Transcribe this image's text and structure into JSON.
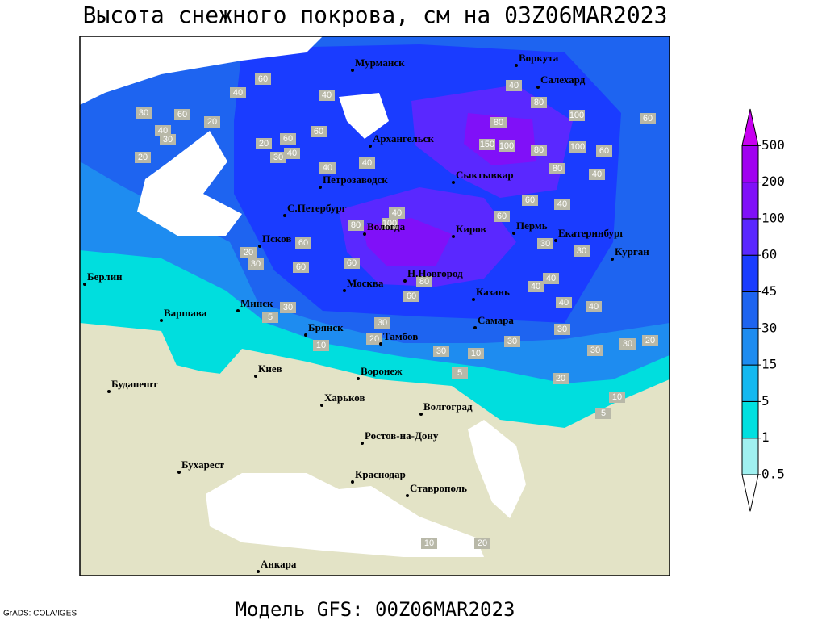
{
  "title": "Высота снежного покрова, см на 03Z06MAR2023",
  "footer": "Модель GFS: 00Z06MAR2023",
  "credit": "GrADS: COLA/IGES",
  "legend": {
    "levels": [
      0.5,
      1,
      5,
      15,
      30,
      45,
      60,
      100,
      200,
      500
    ],
    "colors": [
      "#ffffff",
      "#a0f0f0",
      "#00e0e0",
      "#14b8f0",
      "#1e8cf0",
      "#1e64f0",
      "#1a3cff",
      "#5a28ff",
      "#8010f8",
      "#a000f0",
      "#c800f0"
    ]
  },
  "cities": [
    "Мурманск",
    "Воркута",
    "Салехард",
    "Архангельск",
    "Сыктывкар",
    "Петрозаводск",
    "С.Петербург",
    "Вологда",
    "Киров",
    "Пермь",
    "Екатеринбург",
    "Курган",
    "Псков",
    "Москва",
    "Н.Новгород",
    "Казань",
    "Берлин",
    "Варшава",
    "Минск",
    "Брянск",
    "Тамбов",
    "Самара",
    "Киев",
    "Воронеж",
    "Харьков",
    "Волгоград",
    "Будапешт",
    "Ростов-на-Дону",
    "Бухарест",
    "Краснодар",
    "Ставрополь",
    "Анкара"
  ],
  "contour_labels": [
    40,
    60,
    60,
    20,
    30,
    40,
    30,
    20,
    20,
    60,
    30,
    40,
    40,
    60,
    40,
    40,
    40,
    80,
    100,
    60,
    80,
    150,
    100,
    80,
    100,
    60,
    40,
    80,
    60,
    40,
    60,
    100,
    80,
    40,
    60,
    20,
    30,
    60,
    60,
    30,
    30,
    40,
    40,
    40,
    40,
    30,
    30,
    20,
    30,
    30,
    10,
    30,
    20,
    30,
    30,
    5,
    10,
    5,
    20,
    10,
    5,
    80,
    60,
    10,
    20
  ]
}
